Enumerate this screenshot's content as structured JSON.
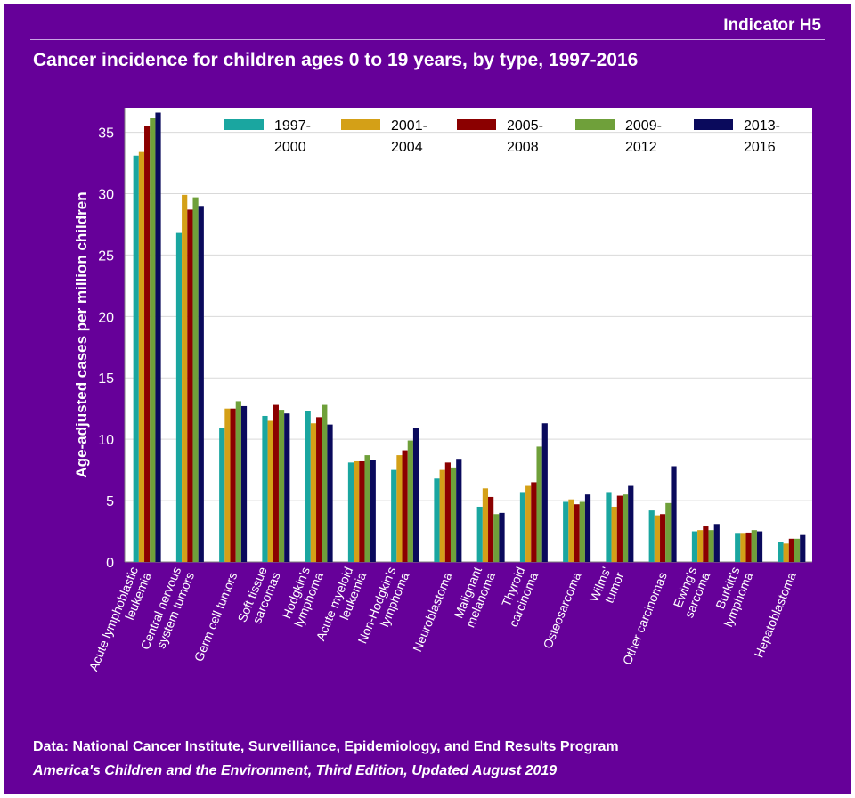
{
  "indicator": "Indicator H5",
  "footer": {
    "source": "Data: National Cancer Institute, Surveilliance, Epidemiology, and End Results Program",
    "edition": "America's Children and the Environment, Third Edition, Updated August 2019"
  },
  "colors": {
    "background": "#660099",
    "plot": "#ffffff",
    "series": [
      "#1aa6a0",
      "#d4a017",
      "#8b0000",
      "#6fa03a",
      "#0a0a5c"
    ]
  },
  "chart_data": {
    "type": "bar",
    "title": "Cancer incidence for children ages 0 to 19 years, by type, 1997-2016",
    "ylabel": "Age-adjusted cases per million children",
    "xlabel": "",
    "ylim": [
      0,
      37
    ],
    "yticks": [
      0,
      5,
      10,
      15,
      20,
      25,
      30,
      35
    ],
    "grid": true,
    "legend_position": "top",
    "categories": [
      [
        "Acute lymphoblastic",
        "leukemia"
      ],
      [
        "Central nervous",
        "system tumors"
      ],
      [
        "Germ cell tumors"
      ],
      [
        "Soft tissue",
        "sarcomas"
      ],
      [
        "Hodgkin's",
        "lymphoma"
      ],
      [
        "Acute myeloid",
        "leukemia"
      ],
      [
        "Non-Hodgkin's",
        "lymphoma"
      ],
      [
        "Neuroblastoma"
      ],
      [
        "Malignant",
        "melanoma"
      ],
      [
        "Thyroid",
        "carcinoma"
      ],
      [
        "Osteosarcoma"
      ],
      [
        "Wilms'",
        "tumor"
      ],
      [
        "Other carcinomas"
      ],
      [
        "Ewing's",
        "sarcoma"
      ],
      [
        "Burkitt's",
        "lymphoma"
      ],
      [
        "Hepatoblastoma"
      ]
    ],
    "series": [
      {
        "name": [
          "1997-",
          "2000"
        ],
        "values": [
          33.1,
          26.8,
          10.9,
          11.9,
          12.3,
          8.1,
          7.5,
          6.8,
          4.5,
          5.7,
          4.9,
          5.7,
          4.2,
          2.5,
          2.3,
          1.6
        ]
      },
      {
        "name": [
          "2001-",
          "2004"
        ],
        "values": [
          33.4,
          29.9,
          12.5,
          11.5,
          11.3,
          8.2,
          8.7,
          7.5,
          6.0,
          6.2,
          5.1,
          4.5,
          3.8,
          2.6,
          2.3,
          1.5
        ]
      },
      {
        "name": [
          "2005-",
          "2008"
        ],
        "values": [
          35.5,
          28.7,
          12.5,
          12.8,
          11.8,
          8.2,
          9.1,
          8.1,
          5.3,
          6.5,
          4.7,
          5.4,
          3.9,
          2.9,
          2.4,
          1.9
        ]
      },
      {
        "name": [
          "2009-",
          "2012"
        ],
        "values": [
          36.2,
          29.7,
          13.1,
          12.4,
          12.8,
          8.7,
          9.9,
          7.7,
          3.9,
          9.4,
          4.9,
          5.5,
          4.8,
          2.6,
          2.6,
          1.9
        ]
      },
      {
        "name": [
          "2013-",
          "2016"
        ],
        "values": [
          36.6,
          29.0,
          12.7,
          12.1,
          11.2,
          8.3,
          10.9,
          8.4,
          4.0,
          11.3,
          5.5,
          6.2,
          7.8,
          3.1,
          2.5,
          2.2
        ]
      }
    ]
  }
}
